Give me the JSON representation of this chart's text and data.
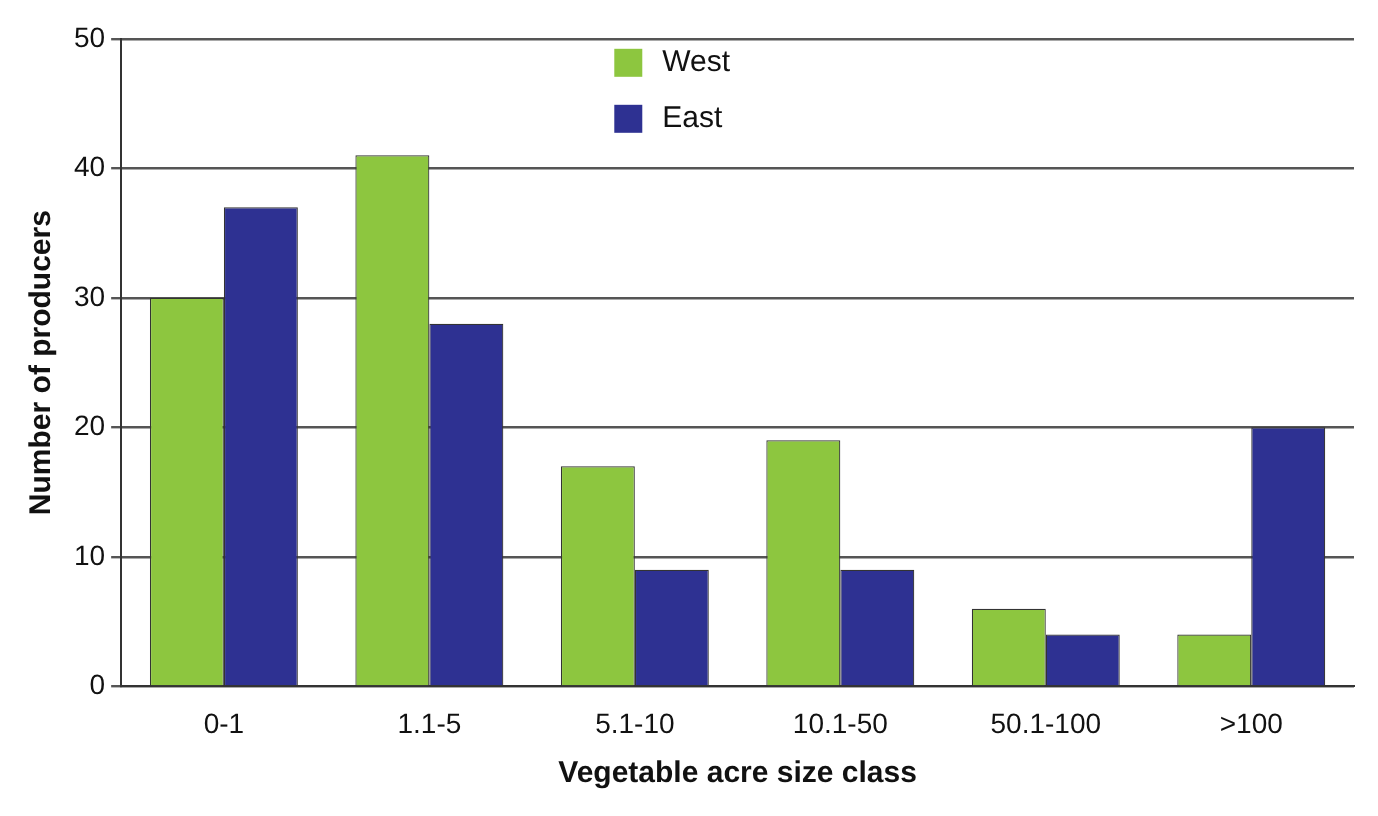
{
  "chart_data": {
    "type": "bar",
    "xlabel": "Vegetable acre size class",
    "ylabel": "Number of producers",
    "categories": [
      "0-1",
      "1.1-5",
      "5.1-10",
      "10.1-50",
      "50.1-100",
      ">100"
    ],
    "series": [
      {
        "name": "West",
        "color": "#8dc63f",
        "values": [
          30,
          41,
          17,
          19,
          6,
          4
        ]
      },
      {
        "name": "East",
        "color": "#2e3192",
        "values": [
          37,
          28,
          9,
          9,
          4,
          20
        ]
      }
    ],
    "ylim": [
      0,
      50
    ],
    "yticks": [
      0,
      10,
      20,
      30,
      40,
      50
    ],
    "grid": "y",
    "legend": "top"
  }
}
